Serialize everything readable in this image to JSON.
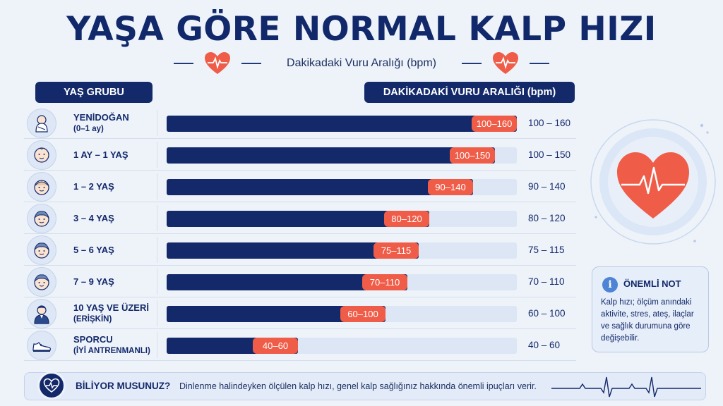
{
  "title": "YAŞA GÖRE NORMAL KALP HIZI",
  "subtitle": "Dakikadaki Vuru Aralığı (bpm)",
  "headers": {
    "age_group": "YAŞ GRUBU",
    "range": "DAKİKADAKİ VURU ARALIĞI (bpm)"
  },
  "chart_data": {
    "type": "bar",
    "title": "YAŞA GÖRE NORMAL KALP HIZI",
    "subtitle": "Dakikadaki Vuru Aralığı (bpm)",
    "ylabel": "YAŞ GRUBU",
    "xlabel": "DAKİKADAKİ VURU ARALIĞI (bpm)",
    "xlim": [
      0,
      160
    ],
    "rows": [
      {
        "label": "YENİDOĞAN",
        "sublabel": "(0–1 ay)",
        "min": 100,
        "max": 160,
        "tag": "100–160",
        "range_text": "100 – 160",
        "icon": "baby-swaddled-icon"
      },
      {
        "label": "1 AY – 1 YAŞ",
        "sublabel": "",
        "min": 100,
        "max": 150,
        "tag": "100–150",
        "range_text": "100 – 150",
        "icon": "baby-face-icon"
      },
      {
        "label": "1 – 2 YAŞ",
        "sublabel": "",
        "min": 90,
        "max": 140,
        "tag": "90–140",
        "range_text": "90 – 140",
        "icon": "toddler-face-icon"
      },
      {
        "label": "3 – 4 YAŞ",
        "sublabel": "",
        "min": 80,
        "max": 120,
        "tag": "80–120",
        "range_text": "80 – 120",
        "icon": "child-face-icon"
      },
      {
        "label": "5 – 6 YAŞ",
        "sublabel": "",
        "min": 75,
        "max": 115,
        "tag": "75–115",
        "range_text": "75 – 115",
        "icon": "child-face-icon"
      },
      {
        "label": "7 – 9 YAŞ",
        "sublabel": "",
        "min": 70,
        "max": 110,
        "tag": "70–110",
        "range_text": "70 – 110",
        "icon": "child-face-icon"
      },
      {
        "label": "10 YAŞ VE ÜZERİ",
        "sublabel": "(ERİŞKİN)",
        "min": 60,
        "max": 100,
        "tag": "60–100",
        "range_text": "60 – 100",
        "icon": "adult-person-icon"
      },
      {
        "label": "SPORCU",
        "sublabel": "(İYİ ANTRENMANLI)",
        "min": 40,
        "max": 60,
        "tag": "40–60",
        "range_text": "40 – 60",
        "icon": "sneaker-icon"
      }
    ]
  },
  "note": {
    "title": "ÖNEMLİ NOT",
    "text": "Kalp hızı; ölçüm anındaki aktivite, stres, ateş, ilaçlar ve sağlık durumuna göre değişebilir."
  },
  "footer": {
    "title": "BİLİYOR MUSUNUZ?",
    "text": "Dinlenme halindeyken ölçülen kalp hızı, genel kalp sağlığınız hakkında önemli ipuçları verir."
  },
  "colors": {
    "navy": "#13296a",
    "accent": "#ef5d49",
    "track": "#dce6f5"
  }
}
